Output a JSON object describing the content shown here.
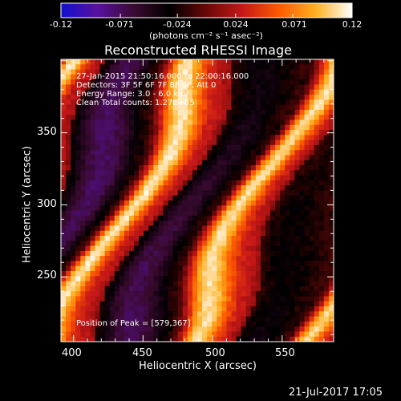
{
  "colorbar": {
    "ticks": [
      "-0.12",
      "-0.071",
      "-0.024",
      "0.024",
      "0.071",
      "0.12"
    ],
    "tick_values": [
      -0.12,
      -0.071,
      -0.024,
      0.024,
      0.071,
      0.12
    ],
    "units": "(photons cm⁻² s⁻¹ asec⁻²)",
    "colors": [
      "#1010d0",
      "#5a10a0",
      "#3a0a30",
      "#000000",
      "#6a0808",
      "#c81818",
      "#ff5a00",
      "#ffb020",
      "#ffffff"
    ]
  },
  "title": "Reconstructed RHESSI Image",
  "annotations": {
    "time": "27-Jan-2015 21:50:16.000 to 22:00:16.000",
    "detectors": "Detectors: 3F 5F 6F 7F 8F 9F, Att 0",
    "energy": "Energy Range: 3.0 - 6.0 keV",
    "clean": "Clean    Total counts: 1.27E+05",
    "peak": "Position of Peak = [579,367]"
  },
  "chart_data": {
    "type": "heatmap",
    "title": "Reconstructed RHESSI Image",
    "xlabel": "Heliocentric X (arcsec)",
    "ylabel": "Heliocentric Y (arcsec)",
    "xlim": [
      391,
      587
    ],
    "ylim": [
      205,
      401
    ],
    "xticks": [
      "400",
      "450",
      "500",
      "550"
    ],
    "xtick_values": [
      400,
      450,
      500,
      550
    ],
    "yticks": [
      "250",
      "300",
      "350"
    ],
    "ytick_values": [
      250,
      300,
      350
    ],
    "color_range": [
      -0.12,
      0.12
    ],
    "grid": false,
    "peak_position": [
      579,
      367
    ]
  },
  "footer": {
    "date": "21-Jul-2017 17:05"
  }
}
